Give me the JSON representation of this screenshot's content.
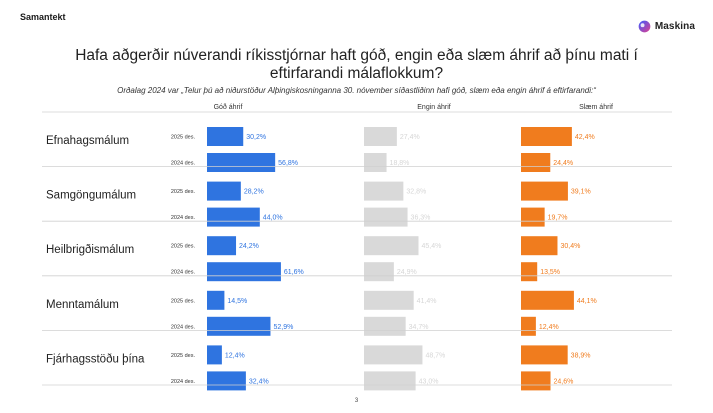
{
  "header": {
    "section_label": "Samantekt",
    "brand_name": "Maskina"
  },
  "title": "Hafa aðgerðir núverandi ríkisstjórnar haft góð, engin eða slæm áhrif að þínu mati í eftirfarandi málaflokkum?",
  "subtitle": "Orðalag 2024 var „Telur þú að niðurstöður Alþingiskosninganna 30. nóvember síðastliðinn hafi góð, slæm eða engin áhrif á eftirfarandi:“",
  "page_number": "3",
  "colors": {
    "good": "#2f74e0",
    "none": "#d9d9d9",
    "bad": "#f07c1e",
    "none_label": "#d6d6d6",
    "divider": "#d0d0d0"
  },
  "chart_data": {
    "type": "bar",
    "orientation": "horizontal",
    "column_headers": [
      "Góð áhrif",
      "Engin áhrif",
      "Slæm áhrif"
    ],
    "series_keys": [
      "good",
      "none",
      "bad"
    ],
    "unit": "%",
    "xlim": [
      0,
      100
    ],
    "categories": [
      {
        "name": "Efnahagsmálum",
        "rows": [
          {
            "year": "2025 des.",
            "good": 30.2,
            "none": 27.4,
            "bad": 42.4
          },
          {
            "year": "2024 des.",
            "good": 56.8,
            "none": 18.8,
            "bad": 24.4
          }
        ]
      },
      {
        "name": "Samgöngumálum",
        "rows": [
          {
            "year": "2025 des.",
            "good": 28.2,
            "none": 32.8,
            "bad": 39.1
          },
          {
            "year": "2024 des.",
            "good": 44.0,
            "none": 36.3,
            "bad": 19.7
          }
        ]
      },
      {
        "name": "Heilbrigðismálum",
        "rows": [
          {
            "year": "2025 des.",
            "good": 24.2,
            "none": 45.4,
            "bad": 30.4
          },
          {
            "year": "2024 des.",
            "good": 61.6,
            "none": 24.9,
            "bad": 13.5
          }
        ]
      },
      {
        "name": "Menntamálum",
        "rows": [
          {
            "year": "2025 des.",
            "good": 14.5,
            "none": 41.4,
            "bad": 44.1
          },
          {
            "year": "2024 des.",
            "good": 52.9,
            "none": 34.7,
            "bad": 12.4
          }
        ]
      },
      {
        "name": "Fjárhagsstöðu þína",
        "rows": [
          {
            "year": "2025 des.",
            "good": 12.4,
            "none": 48.7,
            "bad": 38.9
          },
          {
            "year": "2024 des.",
            "good": 32.4,
            "none": 43.0,
            "bad": 24.6
          }
        ]
      }
    ]
  }
}
